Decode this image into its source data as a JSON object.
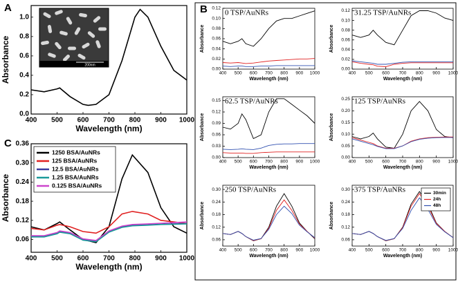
{
  "chart_data": [
    {
      "type": "line",
      "panel_label": "A",
      "inset_scale": "200nm",
      "xlabel": "Wavelength (nm)",
      "ylabel": "Absorbance",
      "x": [
        400,
        450,
        500,
        510,
        550,
        600,
        620,
        650,
        700,
        750,
        800,
        820,
        850,
        900,
        950,
        1000
      ],
      "series": [
        {
          "color": "#000000",
          "values": [
            0.25,
            0.23,
            0.26,
            0.27,
            0.18,
            0.1,
            0.09,
            0.1,
            0.2,
            0.55,
            1.0,
            1.08,
            1.0,
            0.7,
            0.45,
            0.35
          ]
        }
      ],
      "xlim": [
        400,
        1000
      ],
      "xticks": [
        400,
        500,
        600,
        700,
        800,
        900,
        1000
      ],
      "ylim": [
        0,
        1.12
      ],
      "yticks": [
        {
          "value": 0,
          "label": "0.0"
        },
        0.2,
        0.4,
        0.6,
        0.8,
        {
          "value": 1,
          "label": "1.0"
        }
      ]
    },
    {
      "type": "line",
      "panel_label": "B",
      "title": "0 TSP/AuNRs",
      "xlabel": "Wavelength (nm)",
      "ylabel": "Absorbance",
      "x": [
        400,
        450,
        500,
        525,
        550,
        600,
        650,
        700,
        750,
        800,
        850,
        900,
        950,
        1000
      ],
      "series": [
        {
          "color": "#000000",
          "values": [
            0.055,
            0.05,
            0.055,
            0.06,
            0.05,
            0.045,
            0.06,
            0.08,
            0.095,
            0.1,
            0.1,
            0.105,
            0.11,
            0.115
          ]
        },
        {
          "color": "#e02020",
          "values": [
            0.013,
            0.012,
            0.013,
            0.012,
            0.011,
            0.012,
            0.014,
            0.016,
            0.017,
            0.018,
            0.019,
            0.02,
            0.02,
            0.021
          ]
        },
        {
          "color": "#3050b0",
          "values": [
            0.006,
            0.005,
            0.006,
            0.006,
            0.005,
            0.005,
            0.006,
            0.006,
            0.007,
            0.007,
            0.007,
            0.007,
            0.007,
            0.007
          ]
        }
      ],
      "xlim": [
        400,
        1000
      ],
      "xticks": [
        400,
        500,
        600,
        700,
        800,
        900,
        1000
      ],
      "ylim": [
        0,
        0.12
      ],
      "yticks": [
        {
          "value": 0,
          "label": "0.00"
        },
        0.02,
        0.04,
        0.06,
        0.08,
        {
          "value": 0.1,
          "label": "0.10"
        },
        0.12
      ]
    },
    {
      "type": "line",
      "title": "31.25 TSP/AuNRs",
      "xlabel": "Wavelength (nm)",
      "ylabel": "Absorbance",
      "x": [
        400,
        450,
        500,
        525,
        550,
        600,
        650,
        700,
        750,
        800,
        850,
        900,
        950,
        1000
      ],
      "series": [
        {
          "color": "#000000",
          "values": [
            0.07,
            0.065,
            0.07,
            0.08,
            0.07,
            0.055,
            0.05,
            0.08,
            0.11,
            0.12,
            0.12,
            0.115,
            0.105,
            0.1
          ]
        },
        {
          "color": "#e02020",
          "values": [
            0.015,
            0.012,
            0.01,
            0.009,
            0.006,
            0.005,
            0.01,
            0.012,
            0.013,
            0.013,
            0.013,
            0.013,
            0.013,
            0.013
          ]
        },
        {
          "color": "#3050b0",
          "values": [
            0.017,
            0.015,
            0.013,
            0.012,
            0.01,
            0.01,
            0.012,
            0.014,
            0.015,
            0.015,
            0.015,
            0.015,
            0.015,
            0.015
          ]
        }
      ],
      "xlim": [
        400,
        1000
      ],
      "xticks": [
        400,
        500,
        600,
        700,
        800,
        900,
        1000
      ],
      "ylim": [
        0,
        0.125
      ],
      "yticks": [
        {
          "value": 0,
          "label": "0.00"
        },
        0.02,
        0.04,
        0.06,
        0.08,
        {
          "value": 0.1,
          "label": "0.10"
        },
        0.12
      ]
    },
    {
      "type": "line",
      "title": "62.5 TSP/AuNRs",
      "xlabel": "Wavelength (nm)",
      "ylabel": "Absorbance",
      "x": [
        400,
        450,
        500,
        525,
        550,
        600,
        650,
        700,
        750,
        800,
        850,
        900,
        950,
        1000
      ],
      "series": [
        {
          "color": "#000000",
          "values": [
            0.08,
            0.075,
            0.09,
            0.115,
            0.1,
            0.05,
            0.06,
            0.12,
            0.155,
            0.155,
            0.14,
            0.125,
            0.11,
            0.09
          ]
        },
        {
          "color": "#e02020",
          "values": [
            0.013,
            0.012,
            0.012,
            0.012,
            0.011,
            0.011,
            0.013,
            0.014,
            0.015,
            0.015,
            0.015,
            0.015,
            0.015,
            0.015
          ]
        },
        {
          "color": "#3050b0",
          "values": [
            0.022,
            0.021,
            0.022,
            0.023,
            0.022,
            0.021,
            0.025,
            0.032,
            0.035,
            0.036,
            0.036,
            0.037,
            0.037,
            0.037
          ]
        }
      ],
      "xlim": [
        400,
        1000
      ],
      "xticks": [
        400,
        500,
        600,
        700,
        800,
        900,
        1000
      ],
      "ylim": [
        0,
        0.16
      ],
      "yticks": [
        {
          "value": 0,
          "label": "0.00"
        },
        0.03,
        0.06,
        0.09,
        0.12,
        0.15
      ]
    },
    {
      "type": "line",
      "title": "125 TSP/AuNRs",
      "xlabel": "Wavelength (nm)",
      "ylabel": "Absorbance",
      "x": [
        400,
        450,
        500,
        525,
        550,
        600,
        650,
        700,
        750,
        800,
        850,
        900,
        950,
        1000
      ],
      "series": [
        {
          "color": "#000000",
          "values": [
            0.09,
            0.08,
            0.09,
            0.105,
            0.08,
            0.045,
            0.04,
            0.1,
            0.2,
            0.24,
            0.2,
            0.12,
            0.09,
            0.085
          ]
        },
        {
          "color": "#e02020",
          "values": [
            0.085,
            0.075,
            0.065,
            0.06,
            0.05,
            0.04,
            0.04,
            0.05,
            0.07,
            0.08,
            0.085,
            0.087,
            0.088,
            0.088
          ]
        },
        {
          "color": "#3050b0",
          "values": [
            0.08,
            0.07,
            0.06,
            0.055,
            0.048,
            0.038,
            0.038,
            0.05,
            0.068,
            0.078,
            0.083,
            0.085,
            0.086,
            0.086
          ]
        }
      ],
      "xlim": [
        400,
        1000
      ],
      "xticks": [
        400,
        500,
        600,
        700,
        800,
        900,
        1000
      ],
      "ylim": [
        0,
        0.26
      ],
      "yticks": [
        {
          "value": 0,
          "label": "0.00"
        },
        0.05,
        {
          "value": 0.1,
          "label": "0.10"
        },
        0.15,
        {
          "value": 0.2,
          "label": "0.20"
        },
        0.25
      ]
    },
    {
      "type": "line",
      "title": "250 TSP/AuNRs",
      "xlabel": "Wavelength (nm)",
      "ylabel": "Absorbance",
      "x": [
        400,
        450,
        500,
        525,
        550,
        600,
        650,
        700,
        750,
        800,
        850,
        900,
        950,
        1000
      ],
      "series": [
        {
          "color": "#000000",
          "values": [
            0.09,
            0.085,
            0.1,
            0.09,
            0.075,
            0.055,
            0.065,
            0.12,
            0.22,
            0.28,
            0.22,
            0.14,
            0.1,
            0.065
          ]
        },
        {
          "color": "#e02020",
          "values": [
            0.09,
            0.085,
            0.1,
            0.09,
            0.075,
            0.056,
            0.065,
            0.115,
            0.2,
            0.25,
            0.2,
            0.135,
            0.1,
            0.068
          ]
        },
        {
          "color": "#3050b0",
          "values": [
            0.09,
            0.085,
            0.1,
            0.09,
            0.075,
            0.058,
            0.066,
            0.11,
            0.18,
            0.22,
            0.185,
            0.13,
            0.098,
            0.07
          ]
        }
      ],
      "xlim": [
        400,
        1000
      ],
      "xticks": [
        400,
        500,
        600,
        700,
        800,
        900,
        1000
      ],
      "ylim": [
        0.03,
        0.32
      ],
      "yticks": [
        0.06,
        0.12,
        0.18,
        0.24,
        {
          "value": 0.3,
          "label": "0.30"
        }
      ]
    },
    {
      "type": "line",
      "title": "375 TSP/AuNRs",
      "xlabel": "Wavelength (nm)",
      "ylabel": "Absorbance",
      "legend": "upper right",
      "x": [
        400,
        450,
        500,
        525,
        550,
        600,
        650,
        700,
        750,
        800,
        850,
        900,
        950,
        1000
      ],
      "series": [
        {
          "name": "30min",
          "color": "#000000",
          "values": [
            0.09,
            0.085,
            0.1,
            0.09,
            0.075,
            0.055,
            0.065,
            0.12,
            0.23,
            0.29,
            0.23,
            0.14,
            0.1,
            0.07
          ]
        },
        {
          "name": "24h",
          "color": "#e02020",
          "values": [
            0.09,
            0.085,
            0.1,
            0.09,
            0.075,
            0.056,
            0.065,
            0.118,
            0.22,
            0.28,
            0.22,
            0.138,
            0.1,
            0.07
          ]
        },
        {
          "name": "48h",
          "color": "#3050b0",
          "values": [
            0.09,
            0.085,
            0.1,
            0.09,
            0.075,
            0.057,
            0.066,
            0.114,
            0.2,
            0.26,
            0.205,
            0.133,
            0.098,
            0.07
          ]
        }
      ],
      "xlim": [
        400,
        1000
      ],
      "xticks": [
        400,
        500,
        600,
        700,
        800,
        900,
        1000
      ],
      "ylim": [
        0.03,
        0.32
      ],
      "yticks": [
        0.06,
        0.12,
        0.18,
        0.24,
        {
          "value": 0.3,
          "label": "0.30"
        }
      ]
    },
    {
      "type": "line",
      "panel_label": "C",
      "xlabel": "Wavelength (nm)",
      "ylabel": "Absorbance",
      "legend": "upper left",
      "x": [
        400,
        450,
        500,
        510,
        550,
        600,
        650,
        700,
        750,
        790,
        850,
        900,
        950,
        1000
      ],
      "series": [
        {
          "name": "1250 BSA/AuNRs",
          "color": "#000000",
          "values": [
            0.1,
            0.09,
            0.11,
            0.115,
            0.09,
            0.06,
            0.05,
            0.1,
            0.25,
            0.325,
            0.27,
            0.16,
            0.1,
            0.08
          ]
        },
        {
          "name": "125 BSA/AuNRs",
          "color": "#e02020",
          "values": [
            0.095,
            0.09,
            0.105,
            0.107,
            0.1,
            0.085,
            0.08,
            0.1,
            0.14,
            0.148,
            0.14,
            0.12,
            0.115,
            0.11
          ]
        },
        {
          "name": "12.5 BSA/AuNRs",
          "color": "#3a3aa0",
          "values": [
            0.07,
            0.07,
            0.08,
            0.085,
            0.08,
            0.06,
            0.055,
            0.085,
            0.1,
            0.105,
            0.106,
            0.108,
            0.109,
            0.11
          ]
        },
        {
          "name": "1.25 BSA/AuNRs",
          "color": "#1a9a9a",
          "values": [
            0.068,
            0.068,
            0.078,
            0.083,
            0.078,
            0.058,
            0.053,
            0.083,
            0.098,
            0.103,
            0.105,
            0.107,
            0.108,
            0.109
          ]
        },
        {
          "name": "0.125 BSA/AuNRs",
          "color": "#cc44cc",
          "values": [
            0.072,
            0.072,
            0.082,
            0.087,
            0.082,
            0.062,
            0.057,
            0.087,
            0.102,
            0.107,
            0.109,
            0.111,
            0.113,
            0.115
          ]
        }
      ],
      "xlim": [
        400,
        1000
      ],
      "xticks": [
        400,
        500,
        600,
        700,
        800,
        900,
        1000
      ],
      "ylim": [
        0.02,
        0.36
      ],
      "yticks": [
        0.06,
        0.12,
        0.18,
        0.24,
        {
          "value": 0.3,
          "label": "0.30"
        },
        0.36
      ]
    }
  ]
}
